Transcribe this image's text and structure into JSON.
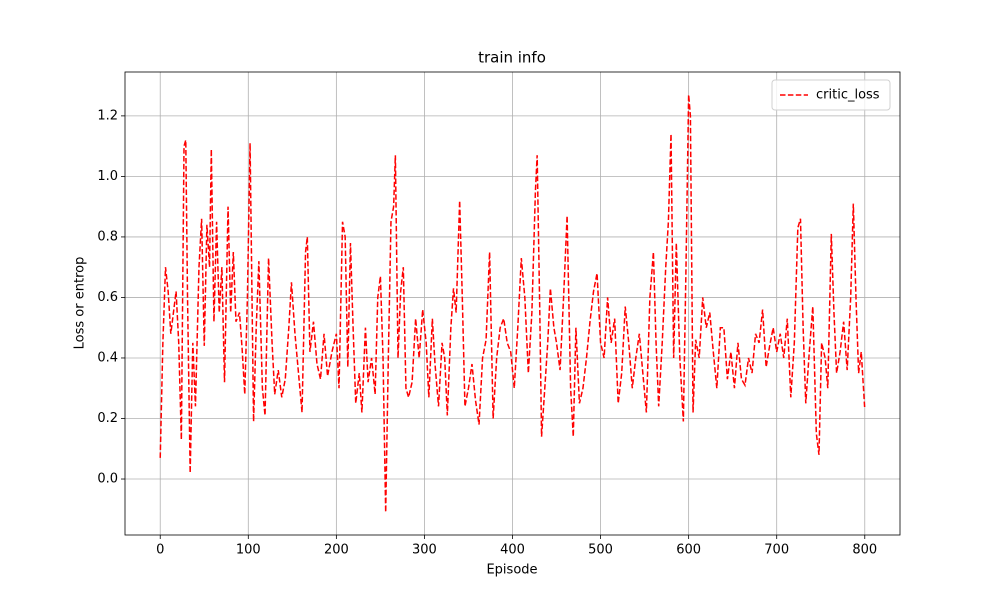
{
  "chart_data": {
    "type": "line",
    "title": "train info",
    "xlabel": "Episode",
    "ylabel": "Loss or entrop",
    "x": [
      0,
      3,
      6,
      9,
      12,
      15,
      18,
      21,
      24,
      27,
      29,
      31,
      34,
      37,
      40,
      44,
      47,
      50,
      53,
      56,
      58,
      61,
      64,
      67,
      70,
      73,
      77,
      80,
      83,
      86,
      90,
      93,
      96,
      99,
      102,
      106,
      109,
      112,
      116,
      119,
      123,
      127,
      130,
      134,
      138,
      142,
      146,
      149,
      153,
      157,
      161,
      165,
      167,
      170,
      174,
      178,
      182,
      186,
      190,
      195,
      200,
      203,
      207,
      210,
      213,
      216,
      219,
      222,
      226,
      229,
      233,
      236,
      240,
      244,
      247,
      250,
      253,
      256,
      259,
      262,
      265,
      267,
      270,
      273,
      276,
      279,
      282,
      286,
      290,
      294,
      298,
      302,
      305,
      309,
      312,
      316,
      320,
      323,
      326,
      330,
      333,
      336,
      340,
      343,
      346,
      350,
      354,
      358,
      362,
      366,
      370,
      374,
      378,
      382,
      386,
      390,
      394,
      398,
      402,
      406,
      410,
      414,
      418,
      422,
      426,
      428,
      431,
      433,
      436,
      440,
      443,
      447,
      450,
      454,
      458,
      462,
      466,
      469,
      472,
      476,
      480,
      484,
      488,
      492,
      496,
      500,
      504,
      508,
      512,
      516,
      520,
      524,
      528,
      532,
      536,
      540,
      544,
      548,
      552,
      556,
      560,
      563,
      566,
      570,
      574,
      577,
      580,
      583,
      586,
      590,
      594,
      597,
      600,
      602,
      605,
      608,
      612,
      616,
      620,
      624,
      628,
      632,
      636,
      640,
      644,
      648,
      652,
      656,
      660,
      664,
      668,
      672,
      676,
      680,
      684,
      688,
      692,
      696,
      700,
      704,
      708,
      712,
      716,
      720,
      724,
      727,
      730,
      733,
      737,
      741,
      745,
      748,
      751,
      755,
      758,
      762,
      765,
      768,
      772,
      776,
      780,
      784,
      787,
      790,
      793,
      796,
      800
    ],
    "series": [
      {
        "name": "critic_loss",
        "color": "#ff0000",
        "values": [
          0.07,
          0.45,
          0.7,
          0.62,
          0.48,
          0.55,
          0.62,
          0.45,
          0.13,
          1.1,
          1.12,
          0.6,
          0.02,
          0.45,
          0.24,
          0.7,
          0.86,
          0.44,
          0.84,
          0.7,
          1.09,
          0.52,
          0.85,
          0.55,
          0.7,
          0.32,
          0.9,
          0.55,
          0.75,
          0.52,
          0.55,
          0.43,
          0.28,
          0.6,
          1.11,
          0.19,
          0.5,
          0.72,
          0.3,
          0.21,
          0.73,
          0.45,
          0.28,
          0.36,
          0.27,
          0.33,
          0.5,
          0.65,
          0.48,
          0.35,
          0.22,
          0.75,
          0.8,
          0.42,
          0.52,
          0.38,
          0.33,
          0.48,
          0.34,
          0.42,
          0.48,
          0.3,
          0.85,
          0.8,
          0.37,
          0.78,
          0.5,
          0.25,
          0.35,
          0.22,
          0.5,
          0.32,
          0.4,
          0.28,
          0.6,
          0.67,
          0.4,
          -0.11,
          0.4,
          0.85,
          0.9,
          1.07,
          0.4,
          0.62,
          0.7,
          0.3,
          0.27,
          0.32,
          0.53,
          0.4,
          0.56,
          0.45,
          0.27,
          0.53,
          0.38,
          0.24,
          0.45,
          0.4,
          0.21,
          0.5,
          0.63,
          0.55,
          0.92,
          0.6,
          0.24,
          0.3,
          0.38,
          0.26,
          0.18,
          0.4,
          0.46,
          0.75,
          0.2,
          0.4,
          0.5,
          0.53,
          0.45,
          0.42,
          0.3,
          0.5,
          0.73,
          0.6,
          0.35,
          0.55,
          0.95,
          1.07,
          0.55,
          0.14,
          0.27,
          0.45,
          0.63,
          0.5,
          0.45,
          0.36,
          0.6,
          0.87,
          0.3,
          0.14,
          0.5,
          0.25,
          0.3,
          0.4,
          0.52,
          0.62,
          0.68,
          0.45,
          0.4,
          0.6,
          0.45,
          0.53,
          0.25,
          0.35,
          0.57,
          0.45,
          0.3,
          0.4,
          0.48,
          0.35,
          0.22,
          0.6,
          0.75,
          0.45,
          0.24,
          0.45,
          0.7,
          0.85,
          1.14,
          0.4,
          0.78,
          0.4,
          0.19,
          0.7,
          1.27,
          1.2,
          0.22,
          0.46,
          0.4,
          0.6,
          0.5,
          0.55,
          0.42,
          0.3,
          0.5,
          0.5,
          0.33,
          0.42,
          0.3,
          0.45,
          0.33,
          0.31,
          0.4,
          0.35,
          0.48,
          0.45,
          0.56,
          0.37,
          0.44,
          0.5,
          0.42,
          0.48,
          0.4,
          0.53,
          0.27,
          0.45,
          0.83,
          0.86,
          0.5,
          0.25,
          0.42,
          0.57,
          0.15,
          0.08,
          0.45,
          0.4,
          0.3,
          0.81,
          0.55,
          0.35,
          0.42,
          0.52,
          0.36,
          0.6,
          0.91,
          0.6,
          0.35,
          0.42,
          0.23
        ]
      }
    ],
    "xlim": [
      -40,
      840
    ],
    "ylim": [
      -0.185,
      1.345
    ],
    "xticks": [
      0,
      100,
      200,
      300,
      400,
      500,
      600,
      700,
      800
    ],
    "yticks": [
      {
        "value": 0,
        "label": "0.0"
      },
      0.2,
      0.4,
      0.6,
      0.8,
      {
        "value": 1,
        "label": "1.0"
      },
      1.2
    ],
    "grid": true,
    "legend": "upper right"
  }
}
